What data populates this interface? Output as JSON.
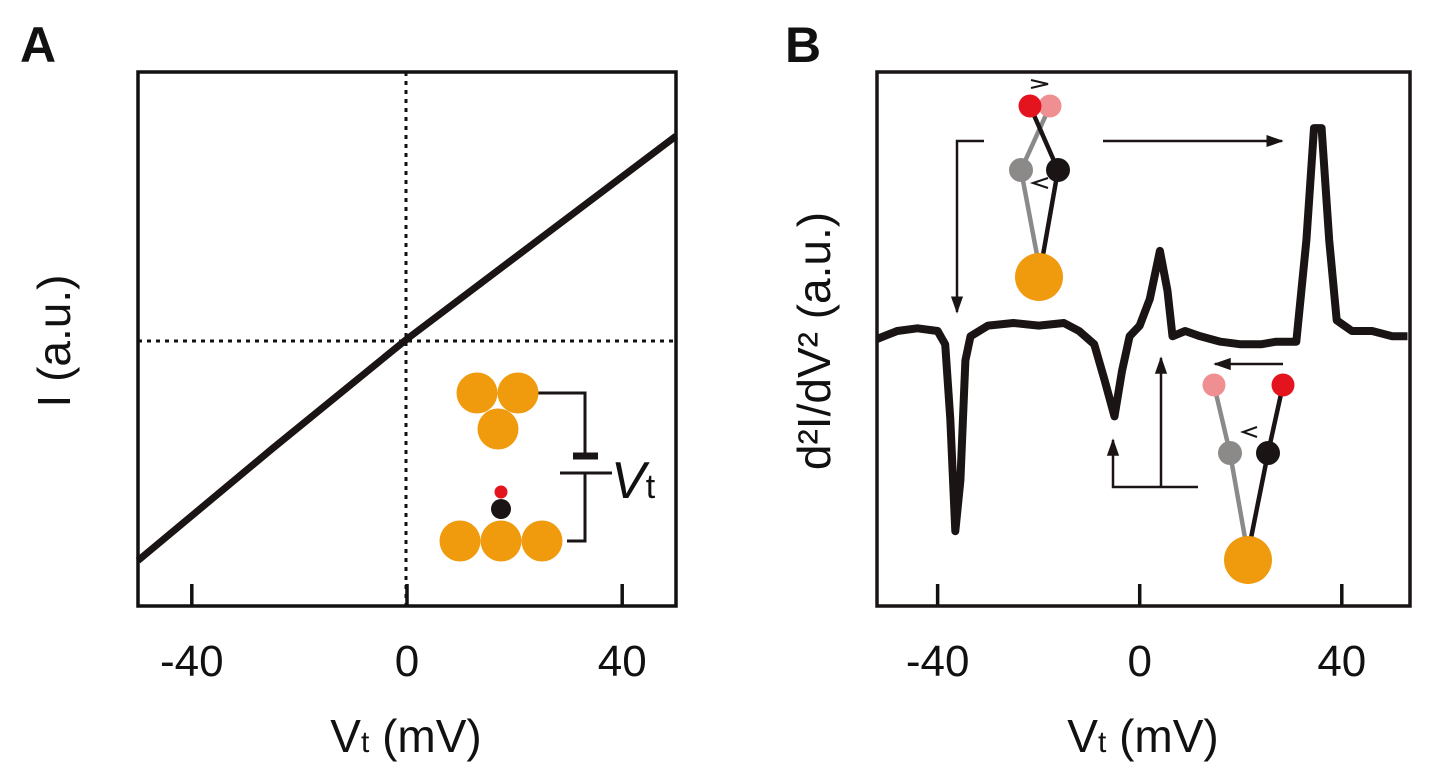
{
  "colors": {
    "line": "#1a1414",
    "gold": "#f09a0e",
    "red": "#e4141e",
    "pink": "#ef8f92",
    "gray": "#8c8989"
  },
  "chart_data": [
    {
      "panel": "A",
      "type": "line",
      "xlabel": {
        "main": "V",
        "sub": "t",
        "unit": " (mV)"
      },
      "ylabel": "I (a.u.)",
      "xlim": [
        -50,
        50
      ],
      "ylim": [
        -1,
        1
      ],
      "xticks": [
        -40,
        0,
        40
      ],
      "xtick_labels": [
        "-40",
        "0",
        "40"
      ],
      "grid": false,
      "reference_lines": {
        "x": 0,
        "y": 0,
        "style": "dotted"
      },
      "inset_label": {
        "main": "V",
        "sub": "t"
      },
      "series": [
        {
          "x": [
            -50,
            -25,
            0,
            25,
            50
          ],
          "y": [
            -0.83,
            -0.41,
            0,
            0.38,
            0.76
          ]
        }
      ]
    },
    {
      "panel": "B",
      "type": "line",
      "xlabel": {
        "main": "V",
        "sub": "t",
        "unit": " (mV)"
      },
      "ylabel": "d²I/dV² (a.u.)",
      "xlim": [
        -52,
        53.5
      ],
      "ylim": [
        -1,
        1
      ],
      "xticks": [
        -40,
        0,
        40
      ],
      "xtick_labels": [
        "-40",
        "0",
        "40"
      ],
      "grid": false,
      "series": [
        {
          "x": [
            -52,
            -48,
            -44,
            -40,
            -38.5,
            -37.5,
            -36.5,
            -35.5,
            -34.5,
            -33.5,
            -30,
            -25,
            -20,
            -15,
            -12,
            -9,
            -7,
            -5,
            -3.5,
            -2,
            0,
            2,
            4,
            5.5,
            6.5,
            9,
            12,
            16,
            20,
            24,
            27,
            31,
            33,
            34.5,
            36,
            37.5,
            39,
            42,
            46,
            50,
            53
          ],
          "y": [
            0.0,
            0.03,
            0.04,
            0.03,
            -0.02,
            -0.3,
            -0.72,
            -0.53,
            -0.08,
            0.01,
            0.05,
            0.06,
            0.05,
            0.06,
            0.03,
            -0.02,
            -0.15,
            -0.29,
            -0.12,
            0.01,
            0.05,
            0.15,
            0.33,
            0.18,
            0.01,
            0.03,
            0.01,
            -0.01,
            -0.02,
            -0.02,
            -0.01,
            -0.01,
            0.37,
            0.79,
            0.79,
            0.37,
            0.07,
            0.03,
            0.03,
            0.01,
            0.01
          ]
        }
      ]
    }
  ]
}
